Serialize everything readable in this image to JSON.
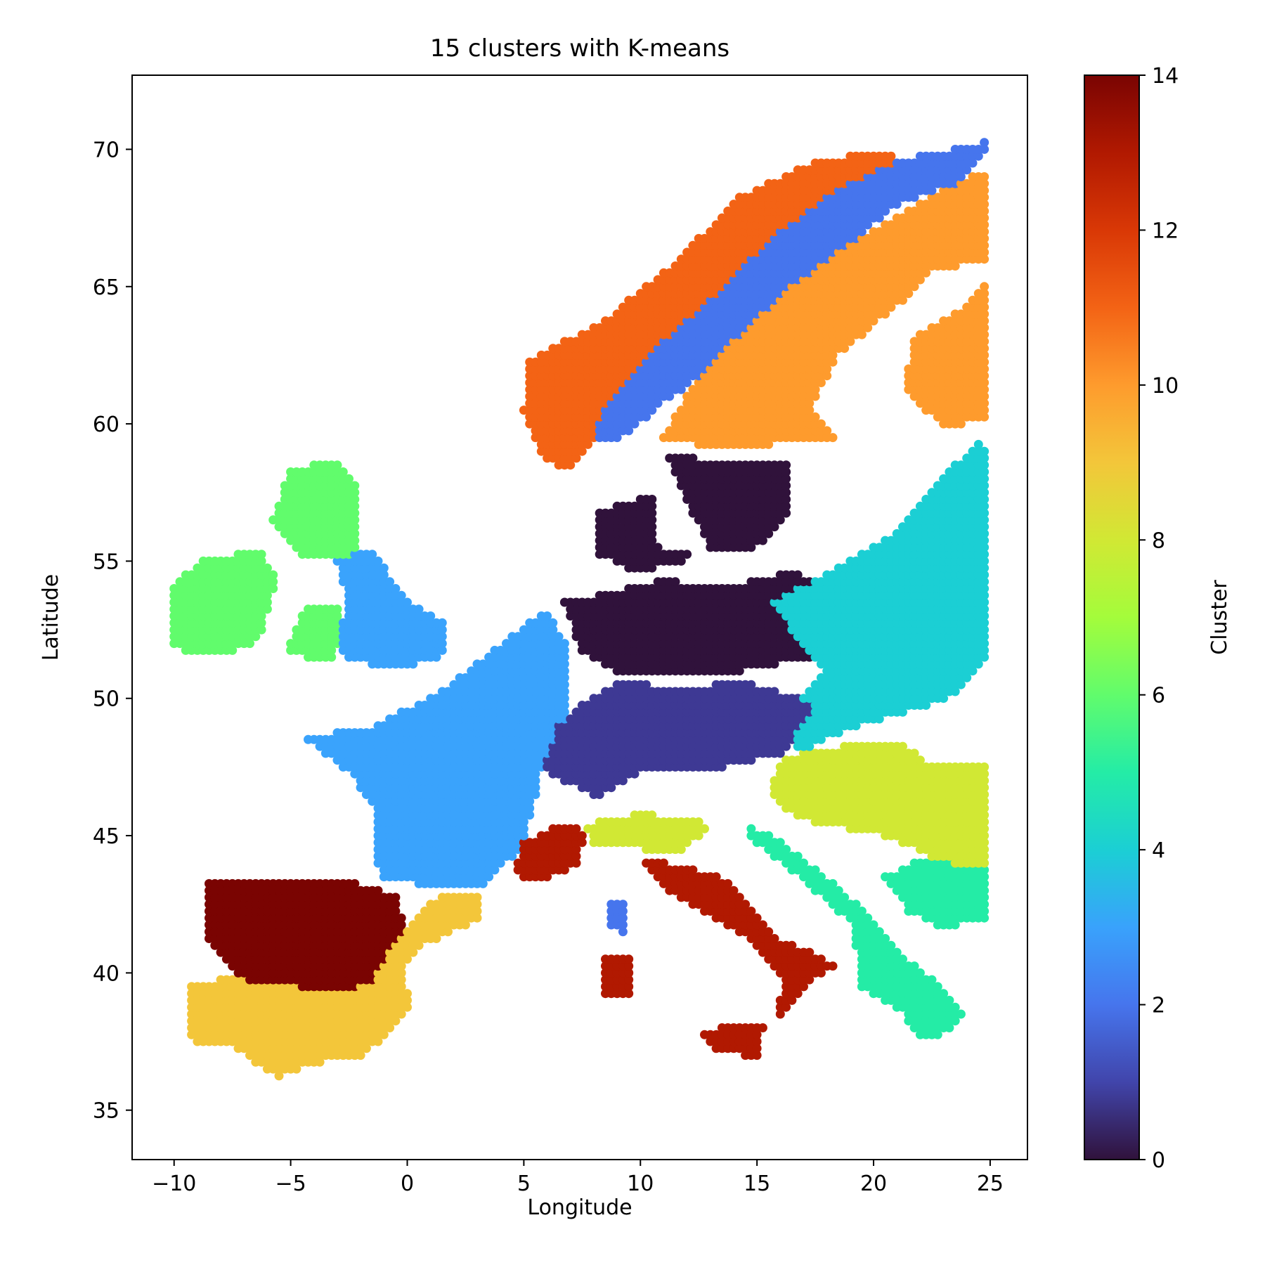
{
  "chart_data": {
    "type": "scatter",
    "title": "15 clusters with K-means",
    "xlabel": "Longitude",
    "ylabel": "Latitude",
    "xlim": [
      -11.8,
      26.6
    ],
    "ylim": [
      33.2,
      72.7
    ],
    "xticks": [
      -10,
      -5,
      0,
      5,
      10,
      15,
      20,
      25
    ],
    "xtick_labels": [
      "−10",
      "−5",
      "0",
      "5",
      "10",
      "15",
      "20",
      "25"
    ],
    "yticks": [
      35,
      40,
      45,
      50,
      55,
      60,
      65,
      70
    ],
    "ytick_labels": [
      "35",
      "40",
      "45",
      "50",
      "55",
      "60",
      "65",
      "70"
    ],
    "grid": false,
    "legend": "none",
    "colormap": "turbo",
    "colorbar": {
      "label": "Cluster",
      "range": [
        0,
        14
      ],
      "ticks": [
        0,
        2,
        4,
        6,
        8,
        10,
        12,
        14
      ],
      "tick_labels": [
        "0",
        "2",
        "4",
        "6",
        "8",
        "10",
        "12",
        "14"
      ],
      "gradient": [
        "#30123b",
        "#4145ab",
        "#4675ed",
        "#39a2fc",
        "#1bcfd4",
        "#24eca6",
        "#61fc6c",
        "#a4fc3b",
        "#d1e834",
        "#f3c63a",
        "#fe9b2d",
        "#f36315",
        "#d93806",
        "#b11901",
        "#7a0402"
      ]
    },
    "cluster_colors": {
      "0": "#30123b",
      "1": "#3e3994",
      "2": "#4675ed",
      "3": "#3aa3fc",
      "4": "#1bcfd4",
      "5": "#24eca6",
      "6": "#61fc6c",
      "7": "#a4fc3b",
      "8": "#d1e834",
      "9": "#f3c63a",
      "10": "#fe9b2d",
      "11": "#f36315",
      "12": "#d93806",
      "13": "#b11901",
      "14": "#7a0402"
    },
    "regions": [
      {
        "cluster": 6,
        "polygon": [
          [
            -10,
            52
          ],
          [
            -10,
            54.2
          ],
          [
            -8.5,
            55.2
          ],
          [
            -6.2,
            55.3
          ],
          [
            -5.6,
            54.4
          ],
          [
            -6,
            53.2
          ],
          [
            -6.3,
            52.1
          ],
          [
            -8,
            51.5
          ],
          [
            -9.6,
            51.6
          ]
        ]
      },
      {
        "cluster": 6,
        "polygon": [
          [
            -5.8,
            56.5
          ],
          [
            -5,
            58.4
          ],
          [
            -3,
            58.6
          ],
          [
            -2,
            57.6
          ],
          [
            -2,
            56.2
          ],
          [
            -2.3,
            55.3
          ],
          [
            -3.2,
            55
          ],
          [
            -4.7,
            55.2
          ]
        ]
      },
      {
        "cluster": 6,
        "polygon": [
          [
            -5.3,
            51.6
          ],
          [
            -4.3,
            53.4
          ],
          [
            -3,
            53.3
          ],
          [
            -2.9,
            52
          ],
          [
            -3.2,
            51.4
          ]
        ]
      },
      {
        "cluster": 3,
        "polygon": [
          [
            -3,
            55
          ],
          [
            -1.6,
            55.5
          ],
          [
            0,
            53.6
          ],
          [
            1.7,
            52.7
          ],
          [
            1.5,
            51.5
          ],
          [
            -0.5,
            51
          ],
          [
            -3,
            51.6
          ],
          [
            -2.6,
            53.6
          ]
        ]
      },
      {
        "cluster": 3,
        "polygon": [
          [
            -4.5,
            48.6
          ],
          [
            -1.5,
            48.9
          ],
          [
            1.8,
            50.5
          ],
          [
            4.6,
            52.4
          ],
          [
            6,
            53.2
          ],
          [
            6.9,
            51.8
          ],
          [
            7,
            49.6
          ],
          [
            5.8,
            47.6
          ],
          [
            5,
            44.6
          ],
          [
            3,
            43
          ],
          [
            -1.2,
            43.4
          ],
          [
            -1.5,
            46.2
          ],
          [
            -2.5,
            47.3
          ]
        ]
      },
      {
        "cluster": 11,
        "polygon": [
          [
            5,
            60.5
          ],
          [
            5.2,
            62.3
          ],
          [
            8.5,
            63.8
          ],
          [
            11.5,
            65.9
          ],
          [
            14.3,
            68.3
          ],
          [
            17.5,
            69.6
          ],
          [
            20.5,
            69.9
          ],
          [
            22,
            69.2
          ],
          [
            17,
            67.6
          ],
          [
            14.2,
            65.3
          ],
          [
            11.8,
            63
          ],
          [
            9.4,
            61
          ],
          [
            7,
            58.3
          ],
          [
            5.8,
            58.7
          ]
        ]
      },
      {
        "cluster": 2,
        "polygon": [
          [
            8.4,
            60.6
          ],
          [
            11,
            63
          ],
          [
            13.2,
            64.7
          ],
          [
            15.8,
            66.9
          ],
          [
            18.5,
            68.6
          ],
          [
            21,
            69.6
          ],
          [
            25,
            70.3
          ],
          [
            23.8,
            68.8
          ],
          [
            21.2,
            68.1
          ],
          [
            18.5,
            66.2
          ],
          [
            16,
            64.1
          ],
          [
            13.3,
            62.2
          ],
          [
            11.2,
            60.9
          ],
          [
            9.2,
            59.5
          ],
          [
            8,
            59.4
          ]
        ]
      },
      {
        "cluster": 10,
        "polygon": [
          [
            11,
            59.5
          ],
          [
            12.3,
            61.5
          ],
          [
            14.2,
            63.2
          ],
          [
            16.5,
            65
          ],
          [
            19.2,
            66.7
          ],
          [
            22.2,
            68.2
          ],
          [
            25,
            69.3
          ],
          [
            25,
            65.8
          ],
          [
            22.5,
            65.7
          ],
          [
            21.3,
            64.5
          ],
          [
            18.5,
            62.5
          ],
          [
            17.3,
            60.6
          ],
          [
            18.5,
            59.4
          ],
          [
            13,
            59.1
          ]
        ]
      },
      {
        "cluster": 10,
        "polygon": [
          [
            21.3,
            61.2
          ],
          [
            21.7,
            63.2
          ],
          [
            23.5,
            64
          ],
          [
            25,
            65.2
          ],
          [
            25,
            60.1
          ],
          [
            23,
            59.9
          ]
        ]
      },
      {
        "cluster": 0,
        "polygon": [
          [
            11.2,
            58.8
          ],
          [
            12.2,
            56.8
          ],
          [
            13,
            55.4
          ],
          [
            15,
            55.5
          ],
          [
            16.5,
            56.7
          ],
          [
            16.4,
            58.6
          ]
        ]
      },
      {
        "cluster": 0,
        "polygon": [
          [
            8.2,
            56.8
          ],
          [
            10.5,
            57.4
          ],
          [
            10.8,
            55.3
          ],
          [
            12.5,
            55.5
          ],
          [
            11.6,
            54.8
          ],
          [
            9.6,
            54.7
          ],
          [
            8.2,
            55.2
          ]
        ]
      },
      {
        "cluster": 0,
        "polygon": [
          [
            6.7,
            53.5
          ],
          [
            11,
            54.3
          ],
          [
            14,
            54.1
          ],
          [
            16.5,
            54.6
          ],
          [
            17.8,
            54.3
          ],
          [
            16.8,
            52.6
          ],
          [
            17.5,
            51.5
          ],
          [
            14.5,
            51
          ],
          [
            12,
            50.8
          ],
          [
            9,
            51
          ],
          [
            7.5,
            51.6
          ]
        ]
      },
      {
        "cluster": 4,
        "polygon": [
          [
            15.6,
            53.5
          ],
          [
            18.5,
            54.8
          ],
          [
            21.2,
            56.2
          ],
          [
            22.5,
            57.7
          ],
          [
            24.5,
            59.3
          ],
          [
            25,
            59.2
          ],
          [
            25,
            51.6
          ],
          [
            23.6,
            50.1
          ],
          [
            21,
            49.4
          ],
          [
            18,
            48.6
          ],
          [
            17,
            48.1
          ],
          [
            15.8,
            48.5
          ],
          [
            17.8,
            51
          ]
        ]
      },
      {
        "cluster": 1,
        "polygon": [
          [
            7.3,
            49.7
          ],
          [
            9,
            50.6
          ],
          [
            11.8,
            50.4
          ],
          [
            14.6,
            50.6
          ],
          [
            17.5,
            49.8
          ],
          [
            16.2,
            48
          ],
          [
            13,
            47.4
          ],
          [
            10.5,
            47.5
          ],
          [
            8.2,
            46.4
          ],
          [
            6.6,
            47
          ],
          [
            5.8,
            47.4
          ],
          [
            6.5,
            49
          ]
        ]
      },
      {
        "cluster": 8,
        "polygon": [
          [
            15.5,
            46.6
          ],
          [
            16.2,
            47.9
          ],
          [
            19,
            48.3
          ],
          [
            20.9,
            48.5
          ],
          [
            22.5,
            47.6
          ],
          [
            25,
            47.6
          ],
          [
            25,
            43.5
          ],
          [
            23.5,
            43.7
          ],
          [
            22.2,
            44.4
          ],
          [
            19.6,
            45.2
          ],
          [
            18,
            45.3
          ],
          [
            16.5,
            45.8
          ]
        ]
      },
      {
        "cluster": 8,
        "polygon": [
          [
            7.6,
            45.4
          ],
          [
            10,
            45.8
          ],
          [
            12.4,
            45.6
          ],
          [
            13,
            45.2
          ],
          [
            11.5,
            44.3
          ],
          [
            9.5,
            44.6
          ],
          [
            8,
            44.7
          ]
        ]
      },
      {
        "cluster": 5,
        "polygon": [
          [
            14.2,
            45.6
          ],
          [
            16.2,
            44.7
          ],
          [
            18.2,
            43.3
          ],
          [
            19.8,
            42.2
          ],
          [
            21,
            40.8
          ],
          [
            22.8,
            39.6
          ],
          [
            24,
            38.5
          ],
          [
            23.2,
            37.8
          ],
          [
            22,
            37.6
          ],
          [
            21.2,
            38.6
          ],
          [
            19.5,
            39.5
          ],
          [
            19.1,
            41.8
          ],
          [
            17.2,
            43.2
          ],
          [
            15.1,
            44.6
          ]
        ]
      },
      {
        "cluster": 5,
        "polygon": [
          [
            20.5,
            43.5
          ],
          [
            22,
            44.2
          ],
          [
            25,
            43.8
          ],
          [
            25,
            42
          ],
          [
            23,
            41.6
          ],
          [
            21.5,
            42.2
          ]
        ]
      },
      {
        "cluster": 13,
        "polygon": [
          [
            10,
            44.2
          ],
          [
            12.1,
            43.8
          ],
          [
            13.5,
            43.5
          ],
          [
            14.9,
            42.2
          ],
          [
            16,
            41.2
          ],
          [
            17.6,
            40.7
          ],
          [
            18.4,
            40.2
          ],
          [
            17.3,
            39.8
          ],
          [
            16.5,
            38.8
          ],
          [
            15.9,
            38.3
          ],
          [
            16.1,
            39.8
          ],
          [
            15.3,
            40.7
          ],
          [
            14,
            41.6
          ],
          [
            12.5,
            42.3
          ],
          [
            11.2,
            43
          ]
        ]
      },
      {
        "cluster": 13,
        "polygon": [
          [
            5,
            44.8
          ],
          [
            6.8,
            45.5
          ],
          [
            7.8,
            45.1
          ],
          [
            7.2,
            43.9
          ],
          [
            5.5,
            43.3
          ],
          [
            4.5,
            43.6
          ]
        ]
      },
      {
        "cluster": 13,
        "polygon": [
          [
            12.5,
            37.9
          ],
          [
            15.3,
            38.2
          ],
          [
            15.1,
            36.9
          ],
          [
            13.2,
            37.2
          ]
        ]
      },
      {
        "cluster": 13,
        "polygon": [
          [
            8.4,
            39
          ],
          [
            8.3,
            40.5
          ],
          [
            9.7,
            40.6
          ],
          [
            9.5,
            39.1
          ]
        ]
      },
      {
        "cluster": 14,
        "polygon": [
          [
            -8.6,
            43.3
          ],
          [
            -4,
            43.4
          ],
          [
            -1.5,
            43.2
          ],
          [
            -0.5,
            42.8
          ],
          [
            0,
            41.5
          ],
          [
            -0.3,
            40.2
          ],
          [
            -1.5,
            38.9
          ],
          [
            -2.8,
            37.4
          ],
          [
            -5.2,
            37.4
          ],
          [
            -6.5,
            38.8
          ],
          [
            -7.5,
            40.2
          ],
          [
            -8.7,
            41.2
          ]
        ]
      },
      {
        "cluster": 9,
        "polygon": [
          [
            -9.5,
            38.7
          ],
          [
            -9.2,
            37.3
          ],
          [
            -7.4,
            37.3
          ],
          [
            -5.6,
            36.2
          ],
          [
            -4,
            36.7
          ],
          [
            -2,
            36.9
          ],
          [
            -0.8,
            37.8
          ],
          [
            0.2,
            38.9
          ],
          [
            -0.2,
            40
          ],
          [
            0.5,
            40.9
          ],
          [
            1.7,
            41.4
          ],
          [
            3.2,
            42
          ],
          [
            3,
            43
          ],
          [
            1.2,
            42.7
          ],
          [
            -0.5,
            41.2
          ],
          [
            -1.5,
            39.6
          ],
          [
            -3.2,
            39.3
          ],
          [
            -5.8,
            39.7
          ],
          [
            -7.8,
            39.8
          ],
          [
            -9.4,
            39.6
          ]
        ]
      },
      {
        "cluster": 2,
        "polygon": [
          [
            8.6,
            42.6
          ],
          [
            9.5,
            42.6
          ],
          [
            9.5,
            41.4
          ],
          [
            8.6,
            41.6
          ]
        ]
      }
    ]
  }
}
